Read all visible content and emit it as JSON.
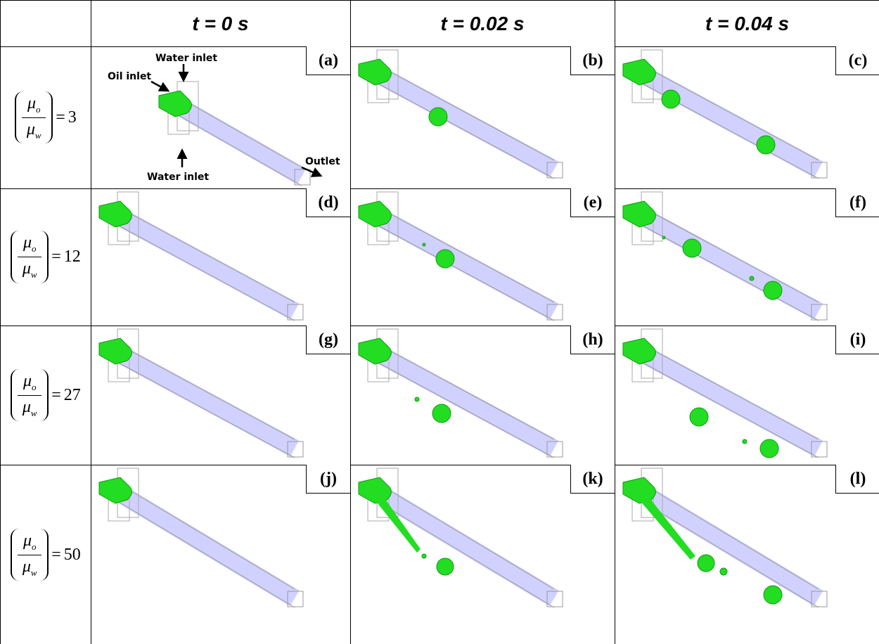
{
  "table": {
    "columns": [
      "t = 0 s",
      "t = 0.02 s",
      "t = 0.04 s"
    ],
    "label_parts": {
      "mu": "μ",
      "oil_sub": "o",
      "water_sub": "w",
      "equals": "="
    },
    "rows": [
      {
        "value": "3",
        "panels": [
          "(a)",
          "(b)",
          "(c)"
        ]
      },
      {
        "value": "12",
        "panels": [
          "(d)",
          "(e)",
          "(f)"
        ]
      },
      {
        "value": "27",
        "panels": [
          "(g)",
          "(h)",
          "(i)"
        ]
      },
      {
        "value": "50",
        "panels": [
          "(j)",
          "(k)",
          "(l)"
        ]
      }
    ]
  },
  "annotations": {
    "water_inlet_top": "Water inlet",
    "oil_inlet": "Oil inlet",
    "water_inlet_bottom": "Water inlet",
    "outlet": "Outlet"
  }
}
